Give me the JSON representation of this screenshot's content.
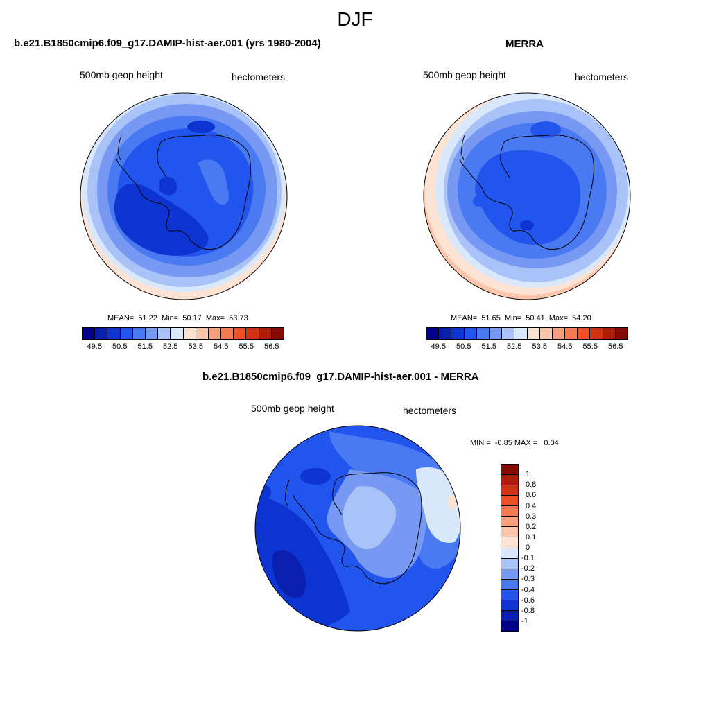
{
  "figure": {
    "title": "DJF"
  },
  "panel_model": {
    "title": "b.e21.B1850cmip6.f09_g17.DAMIP-hist-aer.001 (yrs 1980-2004)",
    "variable": "500mb geop height",
    "units": "hectometers",
    "stats": "MEAN=  51.22  Min=  50.17  Max=  53.73"
  },
  "panel_obs": {
    "title": "MERRA",
    "variable": "500mb geop height",
    "units": "hectometers",
    "stats": "MEAN=  51.65  Min=  50.41  Max=  54.20"
  },
  "panel_diff": {
    "title": "b.e21.B1850cmip6.f09_g17.DAMIP-hist-aer.001 - MERRA",
    "variable": "500mb geop height",
    "units": "hectometers",
    "stats": "MIN =  -0.85 MAX =   0.04"
  },
  "colorbar_abs": {
    "colors": [
      "#00008b",
      "#0a1fb0",
      "#0d33d1",
      "#2255ee",
      "#4a7af2",
      "#7899f3",
      "#a9c2f7",
      "#d9e8fb",
      "#fde3d3",
      "#fcc6ad",
      "#f8a17c",
      "#f57a4f",
      "#ee5125",
      "#d23312",
      "#ac1c06",
      "#850b00"
    ],
    "tick_labels": [
      "49.5",
      "50.5",
      "51.5",
      "52.5",
      "53.5",
      "54.5",
      "55.5",
      "56.5"
    ]
  },
  "colorbar_diff": {
    "colors": [
      "#850b00",
      "#ac1c06",
      "#d23312",
      "#ee5125",
      "#f57a4f",
      "#f8a17c",
      "#fcc6ad",
      "#fde3d3",
      "#d9e8fb",
      "#a9c2f7",
      "#7899f3",
      "#4a7af2",
      "#2255ee",
      "#0d33d1",
      "#0a1fb0",
      "#00008b"
    ],
    "tick_labels": [
      "1",
      "0.8",
      "0.6",
      "0.4",
      "0.3",
      "0.2",
      "0.1",
      "0",
      "-0.1",
      "-0.2",
      "-0.3",
      "-0.4",
      "-0.6",
      "-0.8",
      "-1"
    ]
  }
}
